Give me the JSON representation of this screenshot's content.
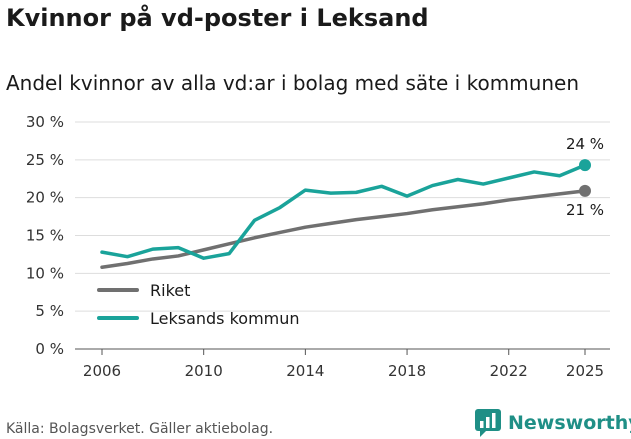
{
  "title": "Kvinnor på vd-poster i Leksand",
  "subtitle": "Andel kvinnor av alla vd:ar i bolag med säte i kommunen",
  "source": "Källa: Bolagsverket. Gäller aktiebolag.",
  "brand": {
    "name": "Newsworthy",
    "icon": "bar-chart-speech-icon",
    "color": "#1f8f86"
  },
  "chart_data": {
    "type": "line",
    "title": "Kvinnor på vd-poster i Leksand",
    "xlabel": "",
    "ylabel": "",
    "x": [
      2006,
      2007,
      2008,
      2009,
      2010,
      2011,
      2012,
      2013,
      2014,
      2015,
      2016,
      2017,
      2018,
      2019,
      2020,
      2021,
      2022,
      2023,
      2024,
      2025
    ],
    "xticks": [
      2006,
      2010,
      2014,
      2018,
      2022,
      2025
    ],
    "xtick_labels": [
      "2006",
      "2010",
      "2014",
      "2018",
      "2022",
      "2025"
    ],
    "ylim": [
      0,
      30
    ],
    "yticks": [
      0,
      5,
      10,
      15,
      20,
      25,
      30
    ],
    "ytick_labels": [
      "0 %",
      "5 %",
      "10 %",
      "15 %",
      "20 %",
      "25 %",
      "30 %"
    ],
    "grid": true,
    "legend_position": "bottom-left",
    "series": [
      {
        "name": "Riket",
        "color": "#707070",
        "values": [
          10.8,
          11.3,
          11.9,
          12.3,
          13.1,
          13.9,
          14.7,
          15.4,
          16.1,
          16.6,
          17.1,
          17.5,
          17.9,
          18.4,
          18.8,
          19.2,
          19.7,
          20.1,
          20.5,
          20.9
        ],
        "end_label": "21 %"
      },
      {
        "name": "Leksands kommun",
        "color": "#1aa39a",
        "values": [
          12.8,
          12.2,
          13.2,
          13.4,
          12.0,
          12.6,
          17.0,
          18.7,
          21.0,
          20.6,
          20.7,
          21.5,
          20.2,
          21.6,
          22.4,
          21.8,
          22.6,
          23.4,
          22.9,
          24.3
        ],
        "end_label": "24 %"
      }
    ]
  }
}
